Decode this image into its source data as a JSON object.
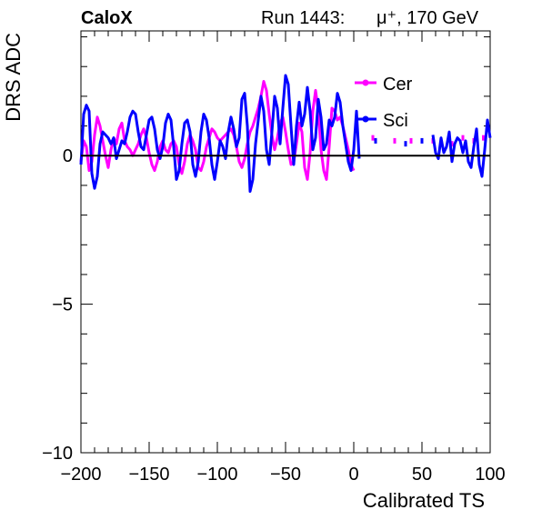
{
  "header": {
    "experiment": "CaloX",
    "run": "Run 1443:",
    "beam": "μ⁺, 170 GeV"
  },
  "chart_data": {
    "type": "line",
    "title": "",
    "xlabel": "Calibrated TS",
    "ylabel": "DRS ADC",
    "xlim": [
      -200,
      100
    ],
    "ylim": [
      -10,
      4.2
    ],
    "x_ticks": [
      -200,
      -150,
      -100,
      -50,
      0,
      50,
      100
    ],
    "x_tick_labels": [
      "−200",
      "−150",
      "−100",
      "−50",
      "0",
      "50",
      "100"
    ],
    "y_ticks": [
      -10,
      -5,
      0
    ],
    "y_tick_labels": [
      "−10",
      "−5",
      "0"
    ],
    "grid": false,
    "legend_position": "top-right",
    "reference_line": 0,
    "series": [
      {
        "name": "Cer",
        "color": "#ff00ff",
        "points": [
          [
            -200,
            -0.2
          ],
          [
            -198,
            0.5
          ],
          [
            -196,
            0.3
          ],
          [
            -194,
            -0.5
          ],
          [
            -192,
            -0.2
          ],
          [
            -190,
            0.7
          ],
          [
            -188,
            1.3
          ],
          [
            -186,
            1.0
          ],
          [
            -184,
            0.5
          ],
          [
            -182,
            0.0
          ],
          [
            -180,
            -0.4
          ],
          [
            -178,
            0.2
          ],
          [
            -176,
            0.6
          ],
          [
            -174,
            0.4
          ],
          [
            -172,
            0.9
          ],
          [
            -170,
            1.1
          ],
          [
            -168,
            0.5
          ],
          [
            -166,
            0.3
          ],
          [
            -164,
            0.2
          ],
          [
            -162,
            0.0
          ],
          [
            -160,
            0.2
          ],
          [
            -158,
            0.4
          ],
          [
            -156,
            0.7
          ],
          [
            -154,
            0.9
          ],
          [
            -152,
            0.6
          ],
          [
            -150,
            0.1
          ],
          [
            -148,
            -0.3
          ],
          [
            -146,
            -0.5
          ],
          [
            -144,
            -0.2
          ],
          [
            -142,
            0.3
          ],
          [
            -140,
            0.5
          ],
          [
            -138,
            0.2
          ],
          [
            -136,
            0.1
          ],
          [
            -134,
            0.4
          ],
          [
            -132,
            0.5
          ],
          [
            -130,
            0.3
          ],
          [
            -128,
            -0.3
          ],
          [
            -126,
            -0.6
          ],
          [
            -124,
            -0.2
          ],
          [
            -122,
            0.4
          ],
          [
            -120,
            0.7
          ],
          [
            -118,
            0.5
          ],
          [
            -116,
            0.2
          ],
          [
            -114,
            -0.4
          ],
          [
            -112,
            -0.5
          ],
          [
            -110,
            -0.2
          ],
          [
            -108,
            0.3
          ],
          [
            -106,
            0.6
          ],
          [
            -104,
            0.9
          ],
          [
            -102,
            0.8
          ],
          [
            -100,
            0.6
          ],
          [
            -98,
            0.5
          ],
          [
            -96,
            0.6
          ],
          [
            -94,
            0.7
          ],
          [
            -92,
            0.8
          ],
          [
            -90,
            0.9
          ],
          [
            -88,
            0.7
          ],
          [
            -86,
            0.3
          ],
          [
            -84,
            -0.2
          ],
          [
            -82,
            -0.4
          ],
          [
            -80,
            -0.1
          ],
          [
            -78,
            0.4
          ],
          [
            -76,
            0.8
          ],
          [
            -74,
            1.0
          ],
          [
            -72,
            1.3
          ],
          [
            -70,
            1.6
          ],
          [
            -68,
            2.0
          ],
          [
            -66,
            2.5
          ],
          [
            -64,
            2.2
          ],
          [
            -62,
            1.4
          ],
          [
            -60,
            0.7
          ],
          [
            -58,
            0.2
          ],
          [
            -56,
            0.6
          ],
          [
            -54,
            1.1
          ],
          [
            -52,
            1.3
          ],
          [
            -50,
            0.8
          ],
          [
            -48,
            0.2
          ],
          [
            -46,
            -0.3
          ],
          [
            -44,
            -0.2
          ],
          [
            -42,
            0.4
          ],
          [
            -40,
            1.1
          ],
          [
            -38,
            0.8
          ],
          [
            -36,
            -0.4
          ],
          [
            -34,
            -0.8
          ],
          [
            -32,
            0.1
          ],
          [
            -30,
            1.5
          ],
          [
            -28,
            2.2
          ],
          [
            -26,
            1.5
          ],
          [
            -24,
            0.2
          ],
          [
            -22,
            -0.5
          ],
          [
            -20,
            -0.8
          ],
          [
            -18,
            0.3
          ],
          [
            -16,
            1.6
          ],
          [
            -14,
            1.5
          ],
          [
            -12,
            1.2
          ],
          [
            -10,
            1.3
          ],
          [
            -8,
            1.0
          ],
          [
            -6,
            0.6
          ],
          [
            -4,
            0.2
          ],
          [
            -2,
            -0.3
          ],
          [
            0,
            -0.5
          ]
        ],
        "markers": [
          [
            14,
            0.6
          ],
          [
            30,
            0.5
          ],
          [
            42,
            0.5
          ],
          [
            58,
            0.5
          ],
          [
            72,
            0.4
          ],
          [
            80,
            0.6
          ],
          [
            88,
            0.5
          ],
          [
            95,
            0.6
          ]
        ]
      },
      {
        "name": "Sci",
        "color": "#0000ff",
        "points": [
          [
            -200,
            -0.3
          ],
          [
            -198,
            1.4
          ],
          [
            -196,
            1.7
          ],
          [
            -194,
            1.5
          ],
          [
            -192,
            -0.6
          ],
          [
            -190,
            -1.1
          ],
          [
            -188,
            -0.7
          ],
          [
            -186,
            0.4
          ],
          [
            -184,
            0.8
          ],
          [
            -182,
            0.7
          ],
          [
            -180,
            0.6
          ],
          [
            -178,
            0.4
          ],
          [
            -176,
            0.6
          ],
          [
            -174,
            -0.1
          ],
          [
            -172,
            0.2
          ],
          [
            -170,
            0.5
          ],
          [
            -168,
            0.4
          ],
          [
            -166,
            0.8
          ],
          [
            -164,
            1.3
          ],
          [
            -162,
            1.5
          ],
          [
            -160,
            1.4
          ],
          [
            -158,
            0.8
          ],
          [
            -156,
            0.3
          ],
          [
            -154,
            0.2
          ],
          [
            -152,
            0.7
          ],
          [
            -150,
            1.2
          ],
          [
            -148,
            1.3
          ],
          [
            -146,
            0.9
          ],
          [
            -144,
            0.2
          ],
          [
            -142,
            -0.1
          ],
          [
            -140,
            0.3
          ],
          [
            -138,
            1.1
          ],
          [
            -136,
            1.4
          ],
          [
            -134,
            1.2
          ],
          [
            -132,
            0.3
          ],
          [
            -130,
            -0.8
          ],
          [
            -128,
            -0.5
          ],
          [
            -126,
            0.4
          ],
          [
            -124,
            1.1
          ],
          [
            -122,
            1.2
          ],
          [
            -120,
            0.8
          ],
          [
            -118,
            -0.3
          ],
          [
            -116,
            -0.7
          ],
          [
            -114,
            -0.2
          ],
          [
            -112,
            0.8
          ],
          [
            -110,
            1.4
          ],
          [
            -108,
            1.2
          ],
          [
            -106,
            0.6
          ],
          [
            -104,
            -0.3
          ],
          [
            -102,
            -0.8
          ],
          [
            -100,
            -0.2
          ],
          [
            -98,
            0.5
          ],
          [
            -96,
            0.3
          ],
          [
            -94,
            -0.1
          ],
          [
            -92,
            0.8
          ],
          [
            -90,
            1.3
          ],
          [
            -88,
            0.9
          ],
          [
            -86,
            0.3
          ],
          [
            -84,
            0.6
          ],
          [
            -82,
            1.9
          ],
          [
            -80,
            2.1
          ],
          [
            -78,
            1.0
          ],
          [
            -76,
            -1.2
          ],
          [
            -74,
            -0.8
          ],
          [
            -72,
            0.4
          ],
          [
            -70,
            1.2
          ],
          [
            -68,
            2.0
          ],
          [
            -66,
            1.5
          ],
          [
            -64,
            0.2
          ],
          [
            -62,
            -0.3
          ],
          [
            -60,
            0.8
          ],
          [
            -58,
            2.0
          ],
          [
            -56,
            1.6
          ],
          [
            -54,
            0.4
          ],
          [
            -52,
            1.6
          ],
          [
            -50,
            2.7
          ],
          [
            -48,
            2.4
          ],
          [
            -46,
            1.0
          ],
          [
            -44,
            -0.3
          ],
          [
            -42,
            1.0
          ],
          [
            -40,
            1.8
          ],
          [
            -38,
            1.0
          ],
          [
            -36,
            1.4
          ],
          [
            -34,
            2.3
          ],
          [
            -32,
            1.5
          ],
          [
            -30,
            0.2
          ],
          [
            -28,
            0.6
          ],
          [
            -26,
            1.9
          ],
          [
            -24,
            1.3
          ],
          [
            -22,
            0.2
          ],
          [
            -20,
            0.4
          ],
          [
            -18,
            1.2
          ],
          [
            -16,
            1.0
          ],
          [
            -14,
            1.3
          ],
          [
            -12,
            2.1
          ],
          [
            -10,
            1.8
          ],
          [
            -8,
            1.0
          ],
          [
            -6,
            0.4
          ],
          [
            -4,
            -0.2
          ],
          [
            -2,
            -0.5
          ],
          [
            0,
            0.2
          ],
          [
            2,
            1.5
          ],
          [
            4,
            -0.1
          ],
          [
            58,
            0.7
          ],
          [
            60,
            0.1
          ],
          [
            62,
            -0.1
          ],
          [
            64,
            0.6
          ],
          [
            66,
            0.1
          ],
          [
            68,
            0.3
          ],
          [
            70,
            0.8
          ],
          [
            72,
            -0.2
          ],
          [
            74,
            0.4
          ],
          [
            76,
            0.6
          ],
          [
            78,
            0.5
          ],
          [
            80,
            0.1
          ],
          [
            82,
            0.5
          ],
          [
            84,
            -0.2
          ],
          [
            86,
            -0.4
          ],
          [
            88,
            0.3
          ],
          [
            90,
            0.9
          ],
          [
            92,
            -0.3
          ],
          [
            94,
            -0.7
          ],
          [
            96,
            0.2
          ],
          [
            98,
            1.2
          ],
          [
            100,
            0.6
          ]
        ],
        "markers": [
          [
            16,
            0.5
          ],
          [
            38,
            0.4
          ],
          [
            50,
            0.5
          ]
        ]
      }
    ]
  }
}
